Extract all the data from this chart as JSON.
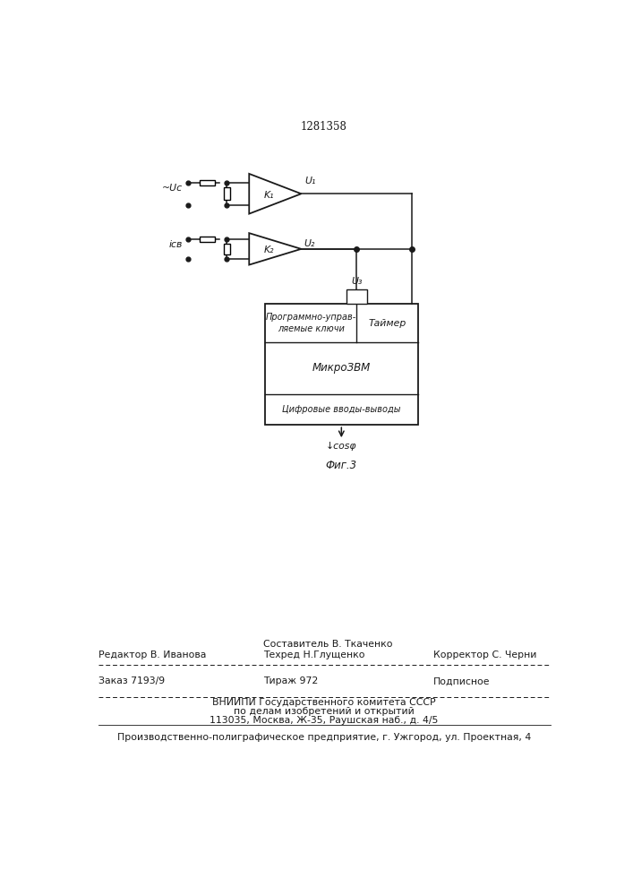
{
  "patent_number": "1281358",
  "fig_label": "Фиг.3",
  "input1_label": "~Uс",
  "input2_label": "iсв",
  "amp1_label": "K₁",
  "amp2_label": "K₂",
  "out1_label": "U₁",
  "out2_label": "U₂",
  "out3_label": "U₃",
  "timer_label": "Таймер",
  "keys_label": "Программно-управ-\nляемые ключи",
  "micro_label": "МикроЗВМ",
  "digital_label": "Цифровые вводы-выводы",
  "cosphi_label": "↓cosφ",
  "editor_line": "Редактор В. Иванова",
  "compiler_line": "Составитель В. Ткаченко",
  "techred_line": "Техред Н.Глущенко",
  "corrector_line": "Корректор С. Черни",
  "order_line": "Заказ 7193/9",
  "tirazh_line": "Тираж 972",
  "podpisnoe_line": "Подписное",
  "vniip_line": "ВНИИПИ Государственного комитета СССР",
  "dela_line": "по делам изобретений и открытий",
  "addr_line": "113035, Москва, Ж-35, Раушская наб., д. 4/5",
  "factory_line": "Производственно-полиграфическое предприятие, г. Ужгород, ул. Проектная, 4",
  "bg_color": "#ffffff",
  "line_color": "#1a1a1a"
}
